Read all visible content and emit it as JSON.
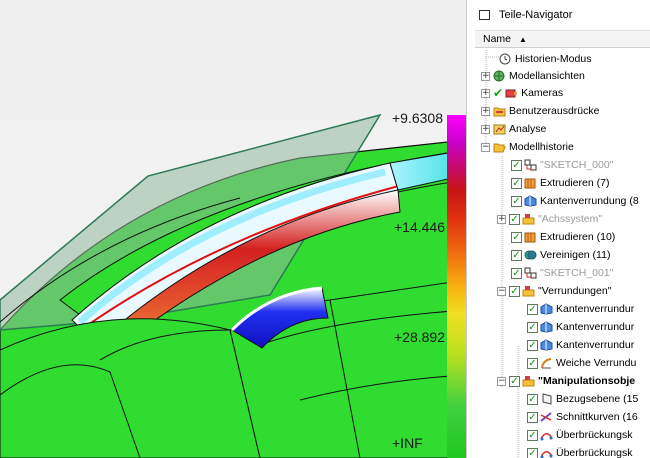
{
  "viewport": {
    "scale_labels": [
      "+9.6308",
      "+14.446",
      "+28.892",
      "+INF"
    ],
    "colors": {
      "background": "#f2f2f2",
      "surface": "#2fdc2f",
      "edge": "#1a1a1a",
      "highlight": "#1414e0"
    }
  },
  "navigator": {
    "title": "Teile-Navigator",
    "column_name": "Name",
    "sort_icon": "sort-ascending-icon",
    "rows": [
      {
        "label": "Historien-Modus",
        "icon": "clock-icon",
        "level": 1
      },
      {
        "label": "Modellansichten",
        "icon": "views-icon",
        "level": 1
      },
      {
        "label": "Kameras",
        "icon": "camera-icon",
        "level": 1
      },
      {
        "label": "Benutzerausdrücke",
        "icon": "folder-icon",
        "level": 1
      },
      {
        "label": "Analyse",
        "icon": "analysis-icon",
        "level": 1
      },
      {
        "label": "Modellhistorie",
        "icon": "folder-open-icon",
        "level": 1
      },
      {
        "label": "\"SKETCH_000\"",
        "icon": "sketch-icon",
        "level": 2
      },
      {
        "label": "Extrudieren (7)",
        "icon": "extrude-icon",
        "level": 2
      },
      {
        "label": "Kantenverrundung (8",
        "icon": "edge-blend-icon",
        "level": 2
      },
      {
        "label": "\"Achssystem\"",
        "icon": "group-icon",
        "level": 2
      },
      {
        "label": "Extrudieren (10)",
        "icon": "extrude-icon",
        "level": 2
      },
      {
        "label": "Vereinigen (11)",
        "icon": "unite-icon",
        "level": 2
      },
      {
        "label": "\"SKETCH_001\"",
        "icon": "sketch-icon",
        "level": 2
      },
      {
        "label": "\"Verrundungen\"",
        "icon": "group-icon",
        "level": 2
      },
      {
        "label": "Kantenverrundur",
        "icon": "edge-blend-icon",
        "level": 3
      },
      {
        "label": "Kantenverrundur",
        "icon": "edge-blend-icon",
        "level": 3
      },
      {
        "label": "Kantenverrundur",
        "icon": "edge-blend-icon",
        "level": 3
      },
      {
        "label": "Weiche Verrundu",
        "icon": "soft-blend-icon",
        "level": 3
      },
      {
        "label": "\"Manipulationsobje",
        "icon": "group-icon",
        "level": 2
      },
      {
        "label": "Bezugsebene (15",
        "icon": "datum-plane-icon",
        "level": 3
      },
      {
        "label": "Schnittkurven (16",
        "icon": "intersection-curve-icon",
        "level": 3
      },
      {
        "label": "Überbrückungsk",
        "icon": "bridge-curve-icon",
        "level": 3
      },
      {
        "label": "Überbrückungsk",
        "icon": "bridge-curve-icon",
        "level": 3
      }
    ]
  }
}
